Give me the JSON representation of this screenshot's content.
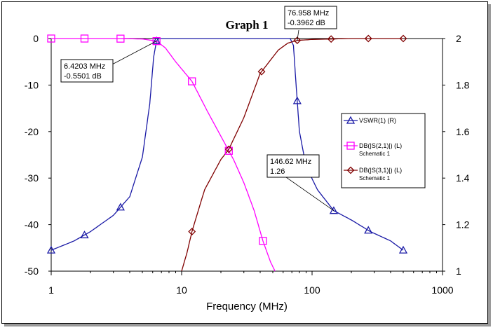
{
  "chart_data": {
    "type": "line",
    "title": "Graph 1",
    "xlabel": "Frequency (MHz)",
    "xscale": "log",
    "xlim": [
      1,
      1000
    ],
    "x_ticks": [
      "1",
      "10",
      "100",
      "1000"
    ],
    "ylim_left": [
      -50,
      0
    ],
    "y_ticks_left": [
      "0",
      "-10",
      "-20",
      "-30",
      "-40",
      "-50"
    ],
    "ylim_right": [
      1,
      2
    ],
    "y_ticks_right": [
      "2",
      "1.8",
      "1.6",
      "1.4",
      "1.2",
      "1"
    ],
    "grid": false,
    "legend_position": "right",
    "series": [
      {
        "name": "VSWR(1) (R)",
        "sub": "",
        "axis": "right",
        "color": "#1a1aa6",
        "marker": "triangle",
        "x": [
          1,
          1.5,
          2,
          3,
          4,
          5,
          5.7,
          6.1,
          6.42,
          6.7,
          68,
          72,
          75,
          80,
          90,
          110,
          146.62,
          200,
          280,
          400,
          500
        ],
        "y": [
          1.09,
          1.13,
          1.17,
          1.24,
          1.32,
          1.49,
          1.72,
          1.92,
          1.99,
          2.0,
          2.0,
          1.97,
          1.82,
          1.6,
          1.45,
          1.35,
          1.26,
          1.22,
          1.17,
          1.13,
          1.09
        ],
        "marker_x": [
          1,
          1.8,
          3.4,
          6.42,
          76.958,
          146.62,
          270,
          500
        ]
      },
      {
        "name": "DB(|S(2,1)|) (L)",
        "sub": "Schematic 1",
        "axis": "left",
        "color": "#ff00ff",
        "marker": "square",
        "x": [
          1,
          3,
          5,
          6.42,
          7.5,
          9,
          12,
          16,
          20,
          25,
          30,
          36,
          42,
          48,
          52
        ],
        "y": [
          0,
          0,
          -0.1,
          -0.5501,
          -2,
          -5,
          -9.2,
          -16,
          -21,
          -26,
          -31,
          -37,
          -43.5,
          -48,
          -50
        ],
        "marker_x": [
          1,
          1.8,
          3.4,
          6.42,
          12,
          23,
          42
        ]
      },
      {
        "name": "DB(|S(3,1)|) (L)",
        "sub": "Schematic 1",
        "axis": "left",
        "color": "#800000",
        "marker": "diamond",
        "x": [
          10,
          11,
          12,
          15,
          20,
          23,
          30,
          40,
          55,
          65,
          76.958,
          100,
          200,
          500
        ],
        "y": [
          -50,
          -46,
          -41.5,
          -32.5,
          -26,
          -23.8,
          -17,
          -7.5,
          -2.5,
          -1,
          -0.3962,
          -0.2,
          0,
          0
        ],
        "marker_x": [
          12,
          23,
          41,
          76.958,
          140,
          270,
          500
        ]
      }
    ],
    "annotations": [
      {
        "line1": "6.4203 MHz",
        "line2": "-0.5501 dB",
        "x": 6.4203,
        "y": -0.5501,
        "axis": "left"
      },
      {
        "line1": "76.958 MHz",
        "line2": "-0.3962 dB",
        "x": 76.958,
        "y": -0.3962,
        "axis": "left"
      },
      {
        "line1": "146.62 MHz",
        "line2": "1.26",
        "x": 146.62,
        "y": 1.26,
        "axis": "right"
      }
    ]
  }
}
